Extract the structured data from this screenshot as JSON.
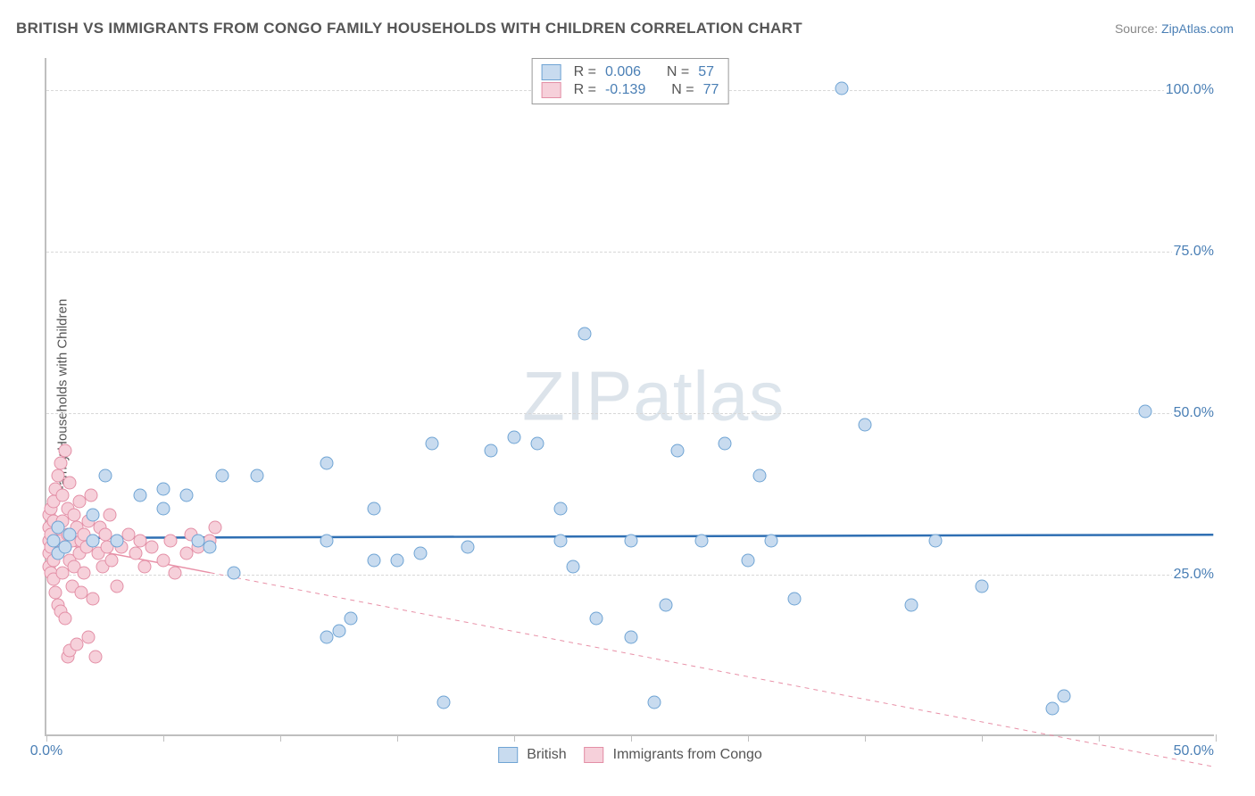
{
  "title": "BRITISH VS IMMIGRANTS FROM CONGO FAMILY HOUSEHOLDS WITH CHILDREN CORRELATION CHART",
  "source_prefix": "Source: ",
  "source_name": "ZipAtlas.com",
  "ylabel": "Family Households with Children",
  "watermark_bold": "ZIP",
  "watermark_thin": "atlas",
  "chart": {
    "type": "scatter",
    "xlim": [
      0,
      50
    ],
    "ylim": [
      0,
      105
    ],
    "xticks": [
      0,
      5,
      10,
      15,
      20,
      25,
      30,
      35,
      40,
      45,
      50
    ],
    "xtick_labels_shown": {
      "0": "0.0%",
      "50": "50.0%"
    },
    "yticks": [
      25,
      50,
      75,
      100
    ],
    "ytick_labels": [
      "25.0%",
      "50.0%",
      "75.0%",
      "100.0%"
    ],
    "background_color": "#ffffff",
    "grid_color": "#d8d8d8",
    "grid_dash": true
  },
  "series": {
    "british": {
      "label": "British",
      "color_fill": "#c8dbef",
      "color_stroke": "#6fa4d4",
      "r_label": "R = ",
      "r_value": "0.006",
      "n_label": "N = ",
      "n_value": "57",
      "trend": {
        "x1": 0,
        "y1": 30.5,
        "x2": 50,
        "y2": 31,
        "color": "#2f6fb3",
        "width": 2.5,
        "dash": false,
        "solid_until_x": 50
      },
      "points": [
        [
          0.3,
          30
        ],
        [
          0.5,
          28
        ],
        [
          0.5,
          32
        ],
        [
          0.8,
          29
        ],
        [
          1,
          31
        ],
        [
          2,
          30
        ],
        [
          2,
          34
        ],
        [
          2.5,
          40
        ],
        [
          3,
          30
        ],
        [
          4,
          37
        ],
        [
          5,
          35
        ],
        [
          5,
          38
        ],
        [
          6,
          37
        ],
        [
          6.5,
          30
        ],
        [
          7,
          29
        ],
        [
          7.5,
          40
        ],
        [
          8,
          25
        ],
        [
          9,
          40
        ],
        [
          12,
          42
        ],
        [
          12,
          30
        ],
        [
          12,
          15
        ],
        [
          12.5,
          16
        ],
        [
          13,
          18
        ],
        [
          14,
          27
        ],
        [
          14,
          35
        ],
        [
          15,
          27
        ],
        [
          16,
          28
        ],
        [
          16.5,
          45
        ],
        [
          17,
          5
        ],
        [
          18,
          29
        ],
        [
          19,
          44
        ],
        [
          20,
          46
        ],
        [
          21,
          45
        ],
        [
          22,
          30
        ],
        [
          22,
          35
        ],
        [
          22.5,
          26
        ],
        [
          23,
          62
        ],
        [
          23.5,
          18
        ],
        [
          25,
          15
        ],
        [
          25,
          30
        ],
        [
          26,
          5
        ],
        [
          26.5,
          20
        ],
        [
          27,
          44
        ],
        [
          28,
          30
        ],
        [
          29,
          45
        ],
        [
          30,
          27
        ],
        [
          30.5,
          40
        ],
        [
          31,
          30
        ],
        [
          32,
          21
        ],
        [
          34,
          100
        ],
        [
          35,
          48
        ],
        [
          37,
          20
        ],
        [
          38,
          30
        ],
        [
          40,
          23
        ],
        [
          43,
          4
        ],
        [
          43.5,
          6
        ],
        [
          47,
          50
        ]
      ]
    },
    "congo": {
      "label": "Immigrants from Congo",
      "color_fill": "#f6d0da",
      "color_stroke": "#e38fa6",
      "r_label": "R = ",
      "r_value": "-0.139",
      "n_label": "N = ",
      "n_value": "77",
      "trend": {
        "x1": 0,
        "y1": 30,
        "x2": 50,
        "y2": -5,
        "color": "#e890a7",
        "width": 1.5,
        "dash": true,
        "solid_until_x": 7
      },
      "points": [
        [
          0.1,
          30
        ],
        [
          0.1,
          28
        ],
        [
          0.1,
          32
        ],
        [
          0.1,
          26
        ],
        [
          0.1,
          34
        ],
        [
          0.2,
          25
        ],
        [
          0.2,
          35
        ],
        [
          0.2,
          29
        ],
        [
          0.2,
          31
        ],
        [
          0.3,
          33
        ],
        [
          0.3,
          27
        ],
        [
          0.3,
          24
        ],
        [
          0.3,
          36
        ],
        [
          0.4,
          22
        ],
        [
          0.4,
          38
        ],
        [
          0.4,
          30
        ],
        [
          0.5,
          40
        ],
        [
          0.5,
          20
        ],
        [
          0.5,
          28
        ],
        [
          0.5,
          32
        ],
        [
          0.6,
          42
        ],
        [
          0.6,
          19
        ],
        [
          0.6,
          30
        ],
        [
          0.7,
          37
        ],
        [
          0.7,
          25
        ],
        [
          0.7,
          33
        ],
        [
          0.8,
          44
        ],
        [
          0.8,
          18
        ],
        [
          0.8,
          29
        ],
        [
          0.9,
          31
        ],
        [
          0.9,
          12
        ],
        [
          0.9,
          35
        ],
        [
          1.0,
          27
        ],
        [
          1.0,
          13
        ],
        [
          1.0,
          39
        ],
        [
          1.1,
          30
        ],
        [
          1.1,
          23
        ],
        [
          1.2,
          34
        ],
        [
          1.2,
          26
        ],
        [
          1.3,
          14
        ],
        [
          1.3,
          32
        ],
        [
          1.4,
          28
        ],
        [
          1.4,
          36
        ],
        [
          1.5,
          30
        ],
        [
          1.5,
          22
        ],
        [
          1.6,
          31
        ],
        [
          1.6,
          25
        ],
        [
          1.7,
          29
        ],
        [
          1.8,
          33
        ],
        [
          1.8,
          15
        ],
        [
          1.9,
          37
        ],
        [
          2.0,
          30
        ],
        [
          2.0,
          21
        ],
        [
          2.1,
          12
        ],
        [
          2.2,
          28
        ],
        [
          2.3,
          32
        ],
        [
          2.4,
          26
        ],
        [
          2.5,
          31
        ],
        [
          2.6,
          29
        ],
        [
          2.7,
          34
        ],
        [
          2.8,
          27
        ],
        [
          3.0,
          30
        ],
        [
          3.0,
          23
        ],
        [
          3.2,
          29
        ],
        [
          3.5,
          31
        ],
        [
          3.8,
          28
        ],
        [
          4.0,
          30
        ],
        [
          4.2,
          26
        ],
        [
          4.5,
          29
        ],
        [
          5.0,
          27
        ],
        [
          5.3,
          30
        ],
        [
          5.5,
          25
        ],
        [
          6.0,
          28
        ],
        [
          6.2,
          31
        ],
        [
          6.5,
          29
        ],
        [
          7.0,
          30
        ],
        [
          7.2,
          32
        ]
      ]
    }
  }
}
